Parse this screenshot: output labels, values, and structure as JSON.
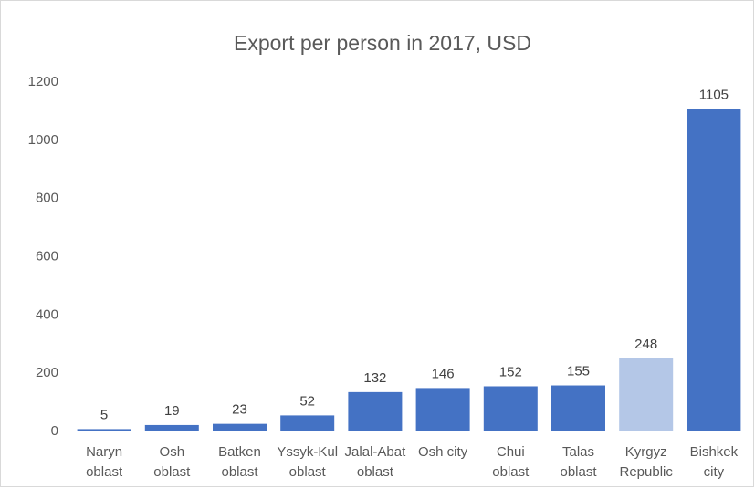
{
  "chart_data": {
    "type": "bar",
    "title": "Export per person in 2017, USD",
    "xlabel": "",
    "ylabel": "",
    "ylim": [
      0,
      1200
    ],
    "yticks": [
      0,
      200,
      400,
      600,
      800,
      1000,
      1200
    ],
    "grid": false,
    "legend": "none",
    "categories": [
      [
        "Naryn",
        "oblast"
      ],
      [
        "Osh",
        "oblast"
      ],
      [
        "Batken",
        "oblast"
      ],
      [
        "Yssyk-Kul",
        "oblast"
      ],
      [
        "Jalal-Abat",
        "oblast"
      ],
      [
        "Osh city"
      ],
      [
        "Chui",
        "oblast"
      ],
      [
        "Talas",
        "oblast"
      ],
      [
        "Kyrgyz",
        "Republic"
      ],
      [
        "Bishkek",
        "city"
      ]
    ],
    "values": [
      5,
      19,
      23,
      52,
      132,
      146,
      152,
      155,
      248,
      1105
    ],
    "data_labels": [
      "5",
      "19",
      "23",
      "52",
      "132",
      "146",
      "152",
      "155",
      "248",
      "1105"
    ],
    "colors": {
      "default": "#4472C4",
      "highlight": "#B4C7E7"
    },
    "highlight_index": 8
  }
}
